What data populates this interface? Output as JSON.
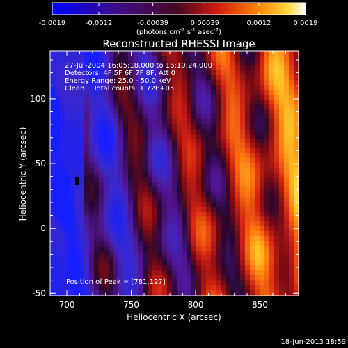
{
  "chart_data": {
    "type": "heatmap",
    "title": "Reconstructed RHESSI Image",
    "xlabel": "Heliocentric X (arcsec)",
    "ylabel": "Heliocentric Y (arcsec)",
    "xlim": [
      687,
      880
    ],
    "ylim": [
      -52,
      137
    ],
    "xticks": [
      "700",
      "750",
      "800",
      "850"
    ],
    "xtick_values": [
      700,
      750,
      800,
      850
    ],
    "yticks": [
      "-50",
      "0",
      "50",
      "100"
    ],
    "ytick_values": [
      -50,
      0,
      50,
      100
    ],
    "colorbar": {
      "min": -0.0019,
      "max": 0.0019,
      "tick_labels": [
        "-0.0019",
        "-0.0012",
        "-0.00039",
        "0.00039",
        "0.0012",
        "0.0019"
      ],
      "tick_values": [
        -0.0019,
        -0.0012,
        -0.00039,
        0.00039,
        0.0012,
        0.0019
      ],
      "unit_base": "(photons cm",
      "unit_exp1": "-2",
      "unit_mid": " s",
      "unit_exp2": "-1",
      "unit_mid2": " asec",
      "unit_exp3": "-2",
      "unit_end": ")"
    },
    "annotations": [
      "27-Jul-2004 16:05:18.000 to 16:10:24.000",
      "Detectors: 4F 5F 6F 7F 8F, Att 0",
      "Energy Range: 25.0 - 50.0 keV",
      "Clean    Total counts: 1.72E+05"
    ],
    "peak_label": "Position of Peak = [781,127]",
    "peak": [
      781,
      127
    ],
    "timestamp": "18-Jun-2013 18:59",
    "grid": false,
    "colors": {
      "blue": "#1f2bff",
      "purple": "#5a1a9e",
      "darkred": "#8a0a1a",
      "red": "#e0301a",
      "orange": "#ff9a10",
      "yellow": "#ffe040"
    }
  }
}
